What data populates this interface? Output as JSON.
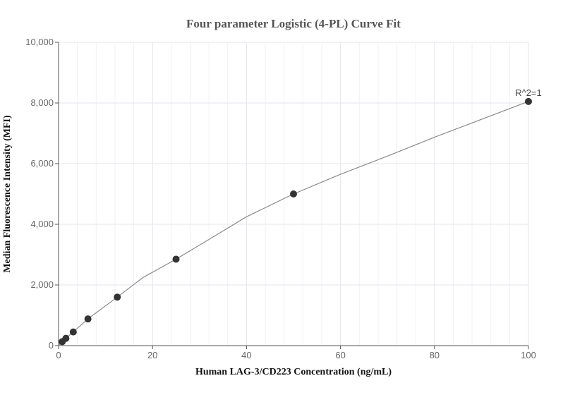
{
  "chart_data": {
    "type": "scatter",
    "title": "Four parameter Logistic (4-PL) Curve Fit",
    "xlabel": "Human LAG-3/CD223 Concentration (ng/mL)",
    "ylabel": "Median Fluorescence Intensity (MFI)",
    "xlim": [
      0,
      100
    ],
    "ylim": [
      0,
      10000
    ],
    "x_ticks": [
      0,
      20,
      40,
      60,
      80,
      100
    ],
    "y_ticks": [
      0,
      2000,
      4000,
      6000,
      8000,
      10000
    ],
    "x_tick_labels": [
      "0",
      "20",
      "40",
      "60",
      "80",
      "100"
    ],
    "y_tick_labels": [
      "0",
      "2,000",
      "4,000",
      "6,000",
      "8,000",
      "10,000"
    ],
    "grid": true,
    "series": [
      {
        "type": "scatter",
        "x": [
          0.78,
          1.56,
          3.13,
          6.25,
          12.5,
          25,
          50,
          100
        ],
        "y": [
          130,
          240,
          450,
          880,
          1600,
          2850,
          5000,
          8050
        ]
      }
    ],
    "fit_curve": {
      "type": "line",
      "x": [
        0,
        0.78,
        1.56,
        3.13,
        6.25,
        12.5,
        18,
        25,
        32,
        40,
        50,
        60,
        70,
        80,
        90,
        100
      ],
      "y": [
        0,
        130,
        240,
        450,
        880,
        1600,
        2250,
        2850,
        3500,
        4250,
        5000,
        5650,
        6250,
        6870,
        7460,
        8050
      ]
    },
    "annotation": {
      "text": "R^2=1",
      "x": 100,
      "y": 8050
    },
    "colors": {
      "marker": "#333333",
      "curve": "#8a8a8a",
      "grid": "#e6e6ee",
      "axis": "#555555"
    }
  }
}
